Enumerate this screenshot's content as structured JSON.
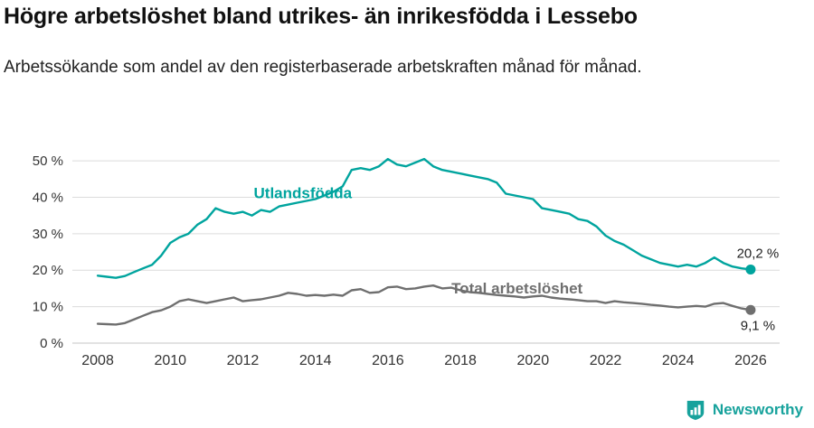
{
  "header": {
    "title": "Högre arbetslöshet bland utrikes- än inrikesfödda i Lessebo",
    "subtitle": "Arbetssökande som andel av den registerbaserade arbetskraften månad för månad."
  },
  "footer": {
    "brand": "Newsworthy"
  },
  "colors": {
    "teal": "#00a49e",
    "gray": "#6f6f6f",
    "grid": "#dcdcdc",
    "baseline": "#c4c4c4",
    "tick_text": "#333333",
    "label_text": "#222222"
  },
  "chart_data": {
    "type": "line",
    "title": "Högre arbetslöshet bland utrikes- än inrikesfödda i Lessebo",
    "subtitle": "Arbetssökande som andel av den registerbaserade arbetskraften månad för månad.",
    "xlabel": "",
    "ylabel": "",
    "grid": "horizontal",
    "legend": "inline-labels",
    "x_range": [
      2007.5,
      2026.7
    ],
    "y_range": [
      0,
      53
    ],
    "x_ticks": [
      2008,
      2010,
      2012,
      2014,
      2016,
      2018,
      2020,
      2022,
      2024,
      2026
    ],
    "x_tick_labels": [
      "2008",
      "2010",
      "2012",
      "2014",
      "2016",
      "2018",
      "2020",
      "2022",
      "2024",
      "2026"
    ],
    "y_ticks": [
      0,
      10,
      20,
      30,
      40,
      50
    ],
    "y_tick_labels": [
      "0 %",
      "10 %",
      "20 %",
      "30 %",
      "40 %",
      "50 %"
    ],
    "x": [
      2008,
      2008.25,
      2008.5,
      2008.75,
      2009,
      2009.25,
      2009.5,
      2009.75,
      2010,
      2010.25,
      2010.5,
      2010.75,
      2011,
      2011.25,
      2011.5,
      2011.75,
      2012,
      2012.25,
      2012.5,
      2012.75,
      2013,
      2013.25,
      2013.5,
      2013.75,
      2014,
      2014.25,
      2014.5,
      2014.75,
      2015,
      2015.25,
      2015.5,
      2015.75,
      2016,
      2016.25,
      2016.5,
      2016.75,
      2017,
      2017.25,
      2017.5,
      2017.75,
      2018,
      2018.25,
      2018.5,
      2018.75,
      2019,
      2019.25,
      2019.5,
      2019.75,
      2020,
      2020.25,
      2020.5,
      2020.75,
      2021,
      2021.25,
      2021.5,
      2021.75,
      2022,
      2022.25,
      2022.5,
      2022.75,
      2023,
      2023.25,
      2023.5,
      2023.75,
      2024,
      2024.25,
      2024.5,
      2024.75,
      2025,
      2025.25,
      2025.5,
      2025.75,
      2026
    ],
    "series": [
      {
        "name": "Utlandsfödda",
        "key": "utlandsfodda",
        "color": "#00a49e",
        "values": [
          18.5,
          18.2,
          17.9,
          18.4,
          19.5,
          20.5,
          21.5,
          24.0,
          27.5,
          29.0,
          30.0,
          32.5,
          34.0,
          37.0,
          36.0,
          35.5,
          36.0,
          35.0,
          36.5,
          36.0,
          37.5,
          38.0,
          38.5,
          39.0,
          39.5,
          40.5,
          41.5,
          43.0,
          47.5,
          48.0,
          47.5,
          48.5,
          50.5,
          49.0,
          48.5,
          49.5,
          50.5,
          48.5,
          47.5,
          47.0,
          46.5,
          46.0,
          45.5,
          45.0,
          44.0,
          41.0,
          40.5,
          40.0,
          39.5,
          37.0,
          36.5,
          36.0,
          35.5,
          34.0,
          33.5,
          32.0,
          29.5,
          28.0,
          27.0,
          25.5,
          24.0,
          23.0,
          22.0,
          21.5,
          21.0,
          21.5,
          21.0,
          22.0,
          23.5,
          22.0,
          21.0,
          20.5,
          20.2
        ]
      },
      {
        "name": "Total arbetslöshet",
        "key": "total",
        "color": "#6f6f6f",
        "values": [
          5.3,
          5.2,
          5.1,
          5.5,
          6.5,
          7.5,
          8.5,
          9.0,
          10.0,
          11.5,
          12.0,
          11.5,
          11.0,
          11.5,
          12.0,
          12.5,
          11.5,
          11.8,
          12.0,
          12.5,
          13.0,
          13.8,
          13.5,
          13.0,
          13.2,
          13.0,
          13.3,
          13.0,
          14.5,
          14.8,
          13.8,
          14.0,
          15.3,
          15.5,
          14.8,
          15.0,
          15.5,
          15.8,
          15.0,
          15.2,
          14.5,
          14.0,
          13.8,
          13.5,
          13.2,
          13.0,
          12.8,
          12.5,
          12.8,
          13.0,
          12.5,
          12.2,
          12.0,
          11.8,
          11.5,
          11.5,
          11.0,
          11.5,
          11.2,
          11.0,
          10.8,
          10.5,
          10.3,
          10.0,
          9.8,
          10.0,
          10.2,
          10.0,
          10.8,
          11.0,
          10.2,
          9.5,
          9.1
        ]
      }
    ],
    "series_labels": [
      {
        "text": "Utlandsfödda",
        "x": 2012.3,
        "y": 41.2,
        "color": "#00a49e"
      },
      {
        "text": "Total arbetslöshet",
        "x": 2017.75,
        "y": 15.1,
        "color": "#6f6f6f"
      }
    ],
    "end_labels": [
      {
        "text": "20,2 %",
        "value": 20.2,
        "position": "above",
        "series": "utlandsfodda"
      },
      {
        "text": "9,1 %",
        "value": 9.1,
        "position": "below",
        "series": "total"
      }
    ]
  }
}
